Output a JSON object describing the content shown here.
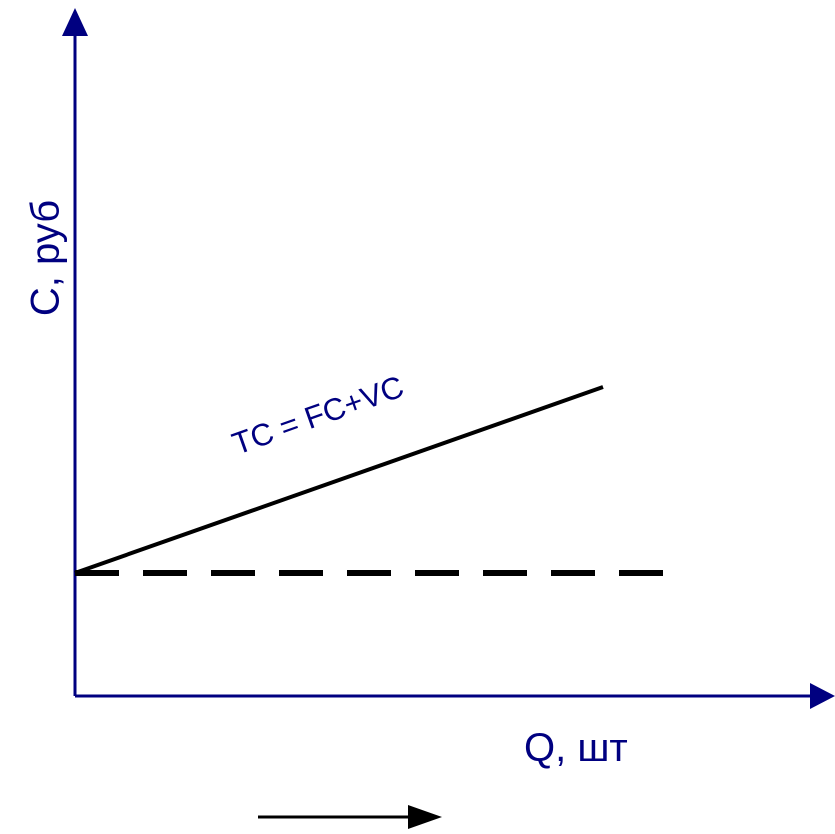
{
  "colors": {
    "axis": "#000080",
    "label": "#000080",
    "curve": "#000000"
  },
  "y_axis": {
    "label": "C, руб"
  },
  "x_axis": {
    "label": "Q, шт"
  },
  "curves": [
    {
      "label": "TC = FC+VC",
      "style": "solid"
    },
    {
      "label": "",
      "style": "dashed"
    }
  ],
  "direction_arrow": {
    "icon": "right-arrow-icon"
  }
}
